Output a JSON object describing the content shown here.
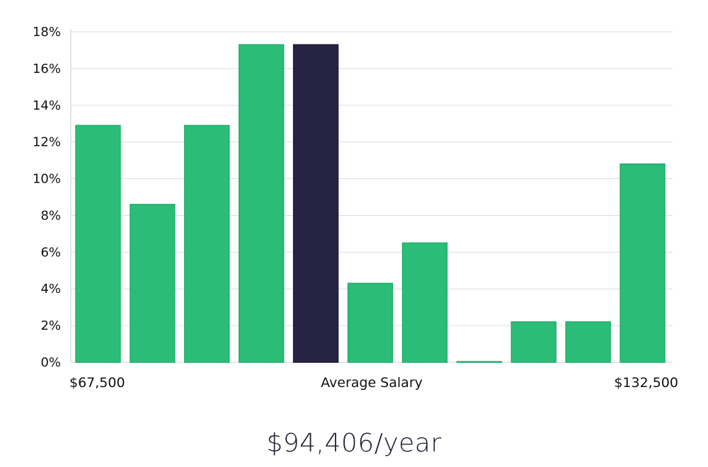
{
  "chart_data": {
    "type": "bar",
    "values": [
      12.9,
      8.6,
      12.9,
      17.3,
      17.3,
      4.3,
      6.5,
      0,
      2.2,
      2.2,
      10.8
    ],
    "highlight_index": 4,
    "ylim": [
      0,
      18
    ],
    "y_ticks": [
      "0%",
      "2%",
      "4%",
      "6%",
      "8%",
      "10%",
      "12%",
      "14%",
      "16%",
      "18%"
    ],
    "x_labels": {
      "left": "$67,500",
      "center": "Average Salary",
      "right": "$132,500"
    },
    "grid": true,
    "colors": {
      "bar": "#2bbd77",
      "bar_stroke": "#1fae6a",
      "highlight": "#272443",
      "grid": "#dddddd",
      "axis": "#cccccc"
    }
  },
  "average_salary": "$94,406/year"
}
